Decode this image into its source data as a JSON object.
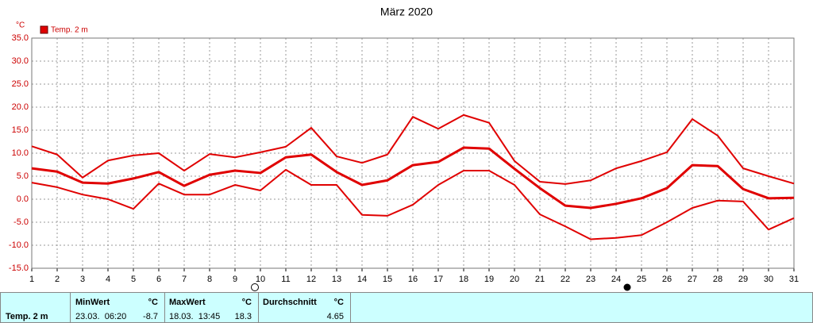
{
  "chart_data": {
    "type": "line",
    "title": "März 2020",
    "y_unit": "°C",
    "legend": "Temp. 2 m",
    "x": [
      1,
      2,
      3,
      4,
      5,
      6,
      7,
      8,
      9,
      10,
      11,
      12,
      13,
      14,
      15,
      16,
      17,
      18,
      19,
      20,
      21,
      22,
      23,
      24,
      25,
      26,
      27,
      28,
      29,
      30,
      31
    ],
    "series": [
      {
        "color": "#e00000",
        "values": [
          11.5,
          9.7,
          4.7,
          8.4,
          9.5,
          10.0,
          6.2,
          9.8,
          9.1,
          10.2,
          11.4,
          15.5,
          9.3,
          7.9,
          9.7,
          17.9,
          15.3,
          18.3,
          16.6,
          8.3,
          3.8,
          3.3,
          4.1,
          6.7,
          8.3,
          10.2,
          17.4,
          13.8,
          6.7,
          5.0,
          3.4
        ]
      },
      {
        "color": "#e00000",
        "values": [
          6.7,
          6.0,
          3.6,
          3.4,
          4.5,
          5.9,
          2.9,
          5.3,
          6.2,
          5.7,
          9.1,
          9.7,
          5.9,
          3.1,
          4.1,
          7.4,
          8.1,
          11.2,
          11.0,
          6.6,
          2.4,
          -1.4,
          -1.9,
          -1.0,
          0.2,
          2.4,
          7.4,
          7.2,
          2.2,
          0.2,
          0.3
        ]
      },
      {
        "color": "#e00000",
        "values": [
          3.6,
          2.6,
          1.0,
          0.0,
          -2.1,
          3.4,
          1.0,
          1.0,
          3.1,
          1.9,
          6.4,
          3.1,
          3.1,
          -3.4,
          -3.6,
          -1.2,
          3.1,
          6.2,
          6.2,
          3.1,
          -3.3,
          -5.9,
          -8.7,
          -8.4,
          -7.8,
          -5.0,
          -1.9,
          -0.3,
          -0.5,
          -6.6,
          -4.1
        ]
      }
    ],
    "xlim": [
      1,
      31
    ],
    "xticks": [
      1,
      2,
      3,
      4,
      5,
      6,
      7,
      8,
      9,
      10,
      11,
      12,
      13,
      14,
      15,
      16,
      17,
      18,
      19,
      20,
      21,
      22,
      23,
      24,
      25,
      26,
      27,
      28,
      29,
      30,
      31
    ],
    "ylim": [
      -15,
      35
    ],
    "yticks": [
      {
        "value": -15,
        "label": "-15.0"
      },
      {
        "value": -10,
        "label": "-10.0"
      },
      {
        "value": -5,
        "label": "-5.0"
      },
      {
        "value": 0,
        "label": "0.0"
      },
      {
        "value": 5,
        "label": "5.0"
      },
      {
        "value": 10,
        "label": "10.0"
      },
      {
        "value": 15,
        "label": "15.0"
      },
      {
        "value": 20,
        "label": "20.0"
      },
      {
        "value": 25,
        "label": "25.0"
      },
      {
        "value": 30,
        "label": "30.0"
      },
      {
        "value": 35,
        "label": "35.0"
      }
    ],
    "grid": true
  },
  "footer": {
    "label": "Temp. 2 m",
    "min": {
      "title": "MinWert",
      "unit": "°C",
      "time": "23.03.  06:20",
      "value": "-8.7"
    },
    "max": {
      "title": "MaxWert",
      "unit": "°C",
      "time": "18.03.  13:45",
      "value": "18.3"
    },
    "avg": {
      "title": "Durchschnitt",
      "unit": "°C",
      "value": "4.65"
    }
  }
}
